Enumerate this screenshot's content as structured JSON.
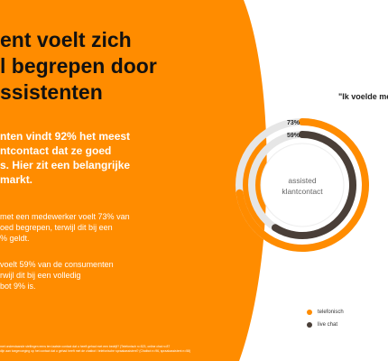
{
  "colors": {
    "orange": "#ff8c00",
    "dark": "#4a3f38",
    "track": "#e6e6e6"
  },
  "headline": {
    "lines": [
      "ent voelt zich",
      "l begrepen door",
      "ssistenten"
    ]
  },
  "intro": {
    "lines": [
      "nten vindt 92% het meest",
      "ntcontact dat ze goed",
      "s. Hier zit een belangrijke",
      "markt."
    ]
  },
  "stats": [
    {
      "lines": [
        "met een medewerker voelt 73% van",
        "oed begrepen, terwijl dit bij een",
        "% geldt."
      ]
    },
    {
      "lines": [
        "voelt 59% van de consumenten",
        "rwijl dit bij een volledig",
        "bot 9% is."
      ]
    }
  ],
  "footnotes": {
    "lines": [
      "met onderstaande stellingen eens ten laatste contact dat u heeft gehad met een bedrijf? (Telefonisch n=523, online chat n=87",
      "dijn aan toegevoeging op het contact dat u gehad heeft met de chatbot / telefonische spraakassistent? (Chatbot n=96, spraakassistent n=58)"
    ]
  },
  "chart_data": {
    "type": "radial-bar",
    "title": "\"Ik voelde me",
    "center_label": [
      "assisted",
      "klantcontact"
    ],
    "max": 100,
    "series": [
      {
        "name": "telefonisch",
        "value": 73,
        "label": "73%",
        "color": "#ff8c00"
      },
      {
        "name": "live chat",
        "value": 59,
        "label": "59%",
        "color": "#4a3f38"
      }
    ]
  }
}
